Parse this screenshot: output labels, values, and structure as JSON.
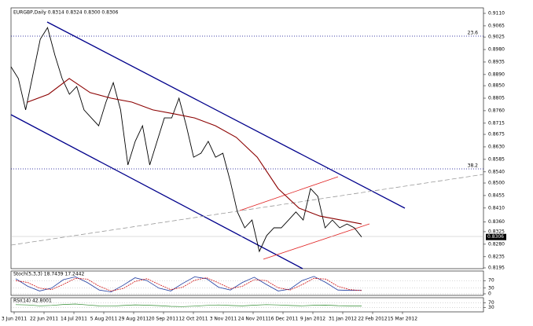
{
  "chart_data": [
    {
      "type": "line",
      "title": "EURGBP,Daily 0.8314 0.8324 0.8300 0.8306",
      "ylim": [
        0.8195,
        0.911
      ],
      "yticks": [
        {
          "value": 0.911,
          "label": "0.9110"
        },
        0.9065,
        0.9025,
        {
          "value": 0.898,
          "label": "0.8980"
        },
        0.8935,
        {
          "value": 0.889,
          "label": "0.8890"
        },
        {
          "value": 0.885,
          "label": "0.8850"
        },
        0.8805,
        {
          "value": 0.876,
          "label": "0.8760"
        },
        0.8715,
        0.8675,
        {
          "value": 0.863,
          "label": "0.8630"
        },
        0.8585,
        {
          "value": 0.854,
          "label": "0.8540"
        },
        {
          "value": 0.85,
          "label": "0.8500"
        },
        0.8455,
        {
          "value": 0.841,
          "label": "0.8410"
        },
        {
          "value": 0.836,
          "label": "0.8360"
        },
        0.8325,
        {
          "value": 0.828,
          "label": "0.8280"
        },
        0.8235,
        0.8195
      ],
      "date_labels": [
        "3 Jun 2011",
        "22 Jun 2011",
        "14 Jul 2011",
        "5 Aug 2011",
        "29 Aug 2011",
        "20 Sep 2011",
        "12 Oct 2011",
        "3 Nov 2011",
        "24 Nov 2011",
        "16 Dec 2011",
        "9 Jan 2012",
        "31 Jan 2012",
        "22 Feb 2012",
        "15 Mar 2012"
      ],
      "series": [
        {
          "color": "#000000",
          "values": [
            0.8918,
            0.8876,
            0.8763,
            0.889,
            0.9017,
            0.9059,
            0.896,
            0.8876,
            0.8819,
            0.8847,
            0.8763,
            0.8734,
            0.8706,
            0.8791,
            0.8861,
            0.8763,
            0.8565,
            0.865,
            0.8706,
            0.8565,
            0.865,
            0.8734,
            0.8734,
            0.8805,
            0.8706,
            0.8593,
            0.8607,
            0.865,
            0.8593,
            0.8607,
            0.8508,
            0.8396,
            0.8339,
            0.8367,
            0.8254,
            0.8311,
            0.8339,
            0.8339,
            0.8367,
            0.8396,
            0.8367,
            0.848,
            0.8452,
            0.8339,
            0.8367,
            0.8339,
            0.8353,
            0.8339,
            0.8306
          ]
        },
        {
          "color": "#8b0000",
          "values": [
            0.8791,
            0.8819,
            0.8876,
            0.8825,
            0.8805,
            0.8791,
            0.8763,
            0.8749,
            0.8734,
            0.8706,
            0.8664,
            0.8593,
            0.848,
            0.841,
            0.8381,
            0.8367,
            0.8353
          ]
        }
      ],
      "fib_labels": [
        "23.6",
        "38.2"
      ],
      "last_price": {
        "value": 0.8306,
        "label": "0.8306"
      }
    },
    {
      "type": "line",
      "title": "Stoch(5,3,3) 18.7439 17.2442",
      "ylim": [
        0,
        100
      ],
      "yticks": [
        0,
        30,
        70
      ],
      "series": [
        {
          "color": "#1e3ca0",
          "values": [
            80,
            40,
            15,
            30,
            75,
            90,
            60,
            20,
            10,
            45,
            85,
            70,
            30,
            15,
            55,
            90,
            80,
            35,
            20,
            60,
            88,
            50,
            15,
            25,
            70,
            92,
            60,
            20,
            18,
            18.7439
          ]
        },
        {
          "color": "#d01010",
          "values": [
            70,
            60,
            30,
            22,
            50,
            82,
            78,
            40,
            15,
            28,
            65,
            80,
            50,
            22,
            35,
            72,
            85,
            58,
            28,
            40,
            75,
            70,
            32,
            20,
            48,
            82,
            78,
            40,
            22,
            17.2442
          ]
        }
      ]
    },
    {
      "type": "line",
      "title": "RSI(14) 42.8001",
      "ylim": [
        0,
        100
      ],
      "yticks": [
        30,
        70
      ],
      "series": [
        {
          "color": "#2e8b2e",
          "values": [
            55,
            52,
            45,
            48,
            56,
            60,
            52,
            44,
            42,
            47,
            53,
            50,
            46,
            40,
            38,
            42,
            48,
            52,
            47,
            44,
            50,
            55,
            52,
            47,
            45,
            49,
            51,
            46,
            44,
            42.8001
          ]
        }
      ]
    }
  ]
}
